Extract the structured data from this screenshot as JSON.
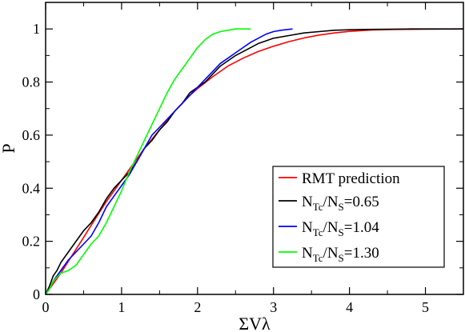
{
  "chart_data": {
    "type": "line",
    "title": "",
    "xlabel": "ΣVλ",
    "ylabel": "P",
    "xlim": [
      0,
      5.5
    ],
    "ylim": [
      0,
      1.1
    ],
    "x_ticks": [
      0,
      1,
      2,
      3,
      4,
      5
    ],
    "x_tick_labels": [
      "0",
      "1",
      "2",
      "3",
      "4",
      "5"
    ],
    "y_ticks": [
      0,
      0.2,
      0.4,
      0.6,
      0.8,
      1.0
    ],
    "y_tick_labels": [
      "0",
      "0.2",
      "0.4",
      "0.6",
      "0.8",
      "1"
    ],
    "grid": false,
    "legend_position": "bottom-right",
    "series": [
      {
        "name": "RMT prediction",
        "legend_parts": [
          {
            "t": "RMT prediction"
          }
        ],
        "color": "#ff0000",
        "x": [
          0,
          0.1,
          0.2,
          0.3,
          0.4,
          0.5,
          0.6,
          0.7,
          0.8,
          0.9,
          1.0,
          1.1,
          1.2,
          1.3,
          1.4,
          1.5,
          1.6,
          1.7,
          1.8,
          1.9,
          2.0,
          2.2,
          2.4,
          2.6,
          2.8,
          3.0,
          3.2,
          3.4,
          3.6,
          3.8,
          4.0,
          4.3,
          4.6,
          5.0,
          5.5
        ],
        "y": [
          0,
          0.04,
          0.08,
          0.125,
          0.17,
          0.215,
          0.26,
          0.305,
          0.35,
          0.39,
          0.43,
          0.47,
          0.51,
          0.55,
          0.585,
          0.62,
          0.655,
          0.69,
          0.72,
          0.75,
          0.775,
          0.82,
          0.86,
          0.89,
          0.915,
          0.935,
          0.952,
          0.966,
          0.977,
          0.985,
          0.991,
          0.996,
          0.998,
          0.999,
          1.0
        ]
      },
      {
        "name": "N_Tc/N_S=0.65",
        "legend_parts": [
          {
            "t": "N"
          },
          {
            "t": "Tc",
            "sub": true
          },
          {
            "t": "/N"
          },
          {
            "t": "S",
            "sub": true
          },
          {
            "t": "=0.65"
          }
        ],
        "color": "#000000",
        "x": [
          0,
          0.05,
          0.1,
          0.15,
          0.2,
          0.3,
          0.4,
          0.5,
          0.6,
          0.7,
          0.8,
          0.9,
          1.0,
          1.1,
          1.2,
          1.3,
          1.4,
          1.5,
          1.6,
          1.7,
          1.8,
          1.9,
          2.0,
          2.1,
          2.2,
          2.3,
          2.4,
          2.5,
          2.6,
          2.7,
          2.8,
          2.9,
          3.0,
          3.2,
          3.4,
          3.6,
          3.8,
          4.0,
          4.2,
          4.5,
          4.8,
          5.0,
          5.5
        ],
        "y": [
          0,
          0.03,
          0.07,
          0.09,
          0.12,
          0.16,
          0.2,
          0.24,
          0.27,
          0.31,
          0.36,
          0.4,
          0.43,
          0.46,
          0.5,
          0.55,
          0.58,
          0.62,
          0.65,
          0.69,
          0.72,
          0.76,
          0.78,
          0.8,
          0.83,
          0.86,
          0.88,
          0.9,
          0.915,
          0.93,
          0.945,
          0.955,
          0.965,
          0.975,
          0.985,
          0.99,
          0.995,
          0.997,
          0.998,
          0.999,
          1.0,
          1.0,
          1.0
        ]
      },
      {
        "name": "N_Tc/N_S=1.04",
        "legend_parts": [
          {
            "t": "N"
          },
          {
            "t": "Tc",
            "sub": true
          },
          {
            "t": "/N"
          },
          {
            "t": "S",
            "sub": true
          },
          {
            "t": "=1.04"
          }
        ],
        "color": "#0000ff",
        "x": [
          0,
          0.05,
          0.1,
          0.2,
          0.3,
          0.4,
          0.5,
          0.6,
          0.7,
          0.8,
          0.9,
          1.0,
          1.1,
          1.2,
          1.3,
          1.4,
          1.5,
          1.6,
          1.7,
          1.8,
          1.9,
          2.0,
          2.1,
          2.2,
          2.3,
          2.4,
          2.5,
          2.6,
          2.7,
          2.8,
          2.9,
          3.0,
          3.1,
          3.25
        ],
        "y": [
          0,
          0.02,
          0.05,
          0.09,
          0.13,
          0.16,
          0.19,
          0.22,
          0.27,
          0.33,
          0.37,
          0.41,
          0.45,
          0.5,
          0.55,
          0.6,
          0.63,
          0.66,
          0.69,
          0.72,
          0.75,
          0.78,
          0.81,
          0.84,
          0.87,
          0.89,
          0.91,
          0.93,
          0.95,
          0.965,
          0.98,
          0.99,
          0.995,
          1.0
        ]
      },
      {
        "name": "N_Tc/N_S=1.30",
        "legend_parts": [
          {
            "t": "N"
          },
          {
            "t": "Tc",
            "sub": true
          },
          {
            "t": "/N"
          },
          {
            "t": "S",
            "sub": true
          },
          {
            "t": "=1.30"
          }
        ],
        "color": "#00ff00",
        "x": [
          0,
          0.05,
          0.1,
          0.2,
          0.3,
          0.4,
          0.5,
          0.6,
          0.7,
          0.8,
          0.9,
          1.0,
          1.1,
          1.2,
          1.3,
          1.4,
          1.5,
          1.6,
          1.7,
          1.8,
          1.9,
          2.0,
          2.1,
          2.2,
          2.3,
          2.4,
          2.5,
          2.6,
          2.7
        ],
        "y": [
          0,
          0.02,
          0.05,
          0.08,
          0.09,
          0.11,
          0.15,
          0.19,
          0.22,
          0.27,
          0.33,
          0.39,
          0.46,
          0.52,
          0.58,
          0.64,
          0.7,
          0.76,
          0.81,
          0.85,
          0.89,
          0.93,
          0.96,
          0.98,
          0.99,
          0.995,
          1.0,
          1.0,
          1.0
        ]
      }
    ]
  }
}
